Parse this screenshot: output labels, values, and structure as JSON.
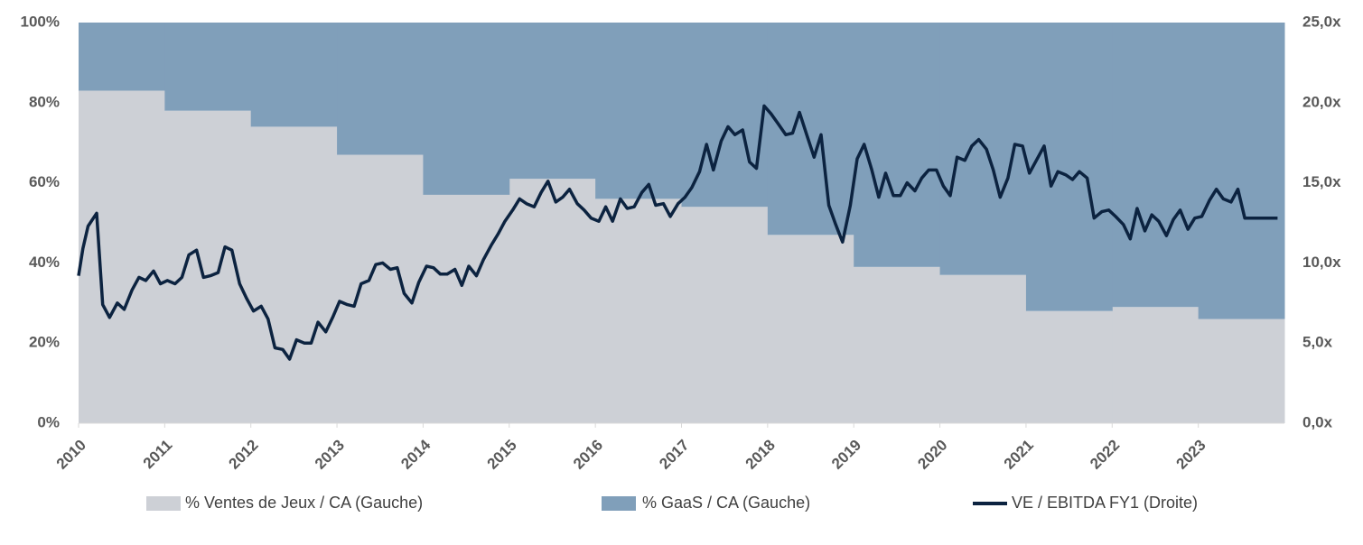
{
  "chart_data": {
    "type": "combo",
    "x": [
      2010,
      2011,
      2012,
      2013,
      2014,
      2015,
      2016,
      2017,
      2018,
      2019,
      2020,
      2021,
      2022,
      2023
    ],
    "xlim": [
      2010,
      2024
    ],
    "xticks": [
      2010,
      2011,
      2012,
      2013,
      2014,
      2015,
      2016,
      2017,
      2018,
      2019,
      2020,
      2021,
      2022,
      2023
    ],
    "ylim": [
      0,
      100
    ],
    "yticks": [
      {
        "value": 0,
        "label": "0%"
      },
      {
        "value": 20,
        "label": "20%"
      },
      {
        "value": 40,
        "label": "40%"
      },
      {
        "value": 60,
        "label": "60%"
      },
      {
        "value": 80,
        "label": "80%"
      },
      {
        "value": 100,
        "label": "100%"
      }
    ],
    "y2lim": [
      0,
      25
    ],
    "y2ticks": [
      {
        "value": 0,
        "label": "0,0x"
      },
      {
        "value": 5,
        "label": "5,0x"
      },
      {
        "value": 10,
        "label": "10,0x"
      },
      {
        "value": 15,
        "label": "15,0x"
      },
      {
        "value": 20,
        "label": "20,0x"
      },
      {
        "value": 25,
        "label": "25,0x"
      }
    ],
    "series": [
      {
        "name": "% Ventes de Jeux / CA (Gauche)",
        "color": "#cdd0d6",
        "kind": "stacked-area",
        "values": [
          83,
          78,
          74,
          67,
          57,
          61,
          56,
          54,
          47,
          39,
          37,
          28,
          29,
          26
        ]
      },
      {
        "name": "% GaaS / CA (Gauche)",
        "color": "#809fba",
        "kind": "stacked-area",
        "values": [
          17,
          22,
          26,
          33,
          43,
          39,
          44,
          46,
          53,
          61,
          63,
          72,
          71,
          74
        ]
      },
      {
        "name": "VE / EBITDA FY1 (Droite)",
        "color": "#0c2340",
        "kind": "line",
        "axis": "y2",
        "x": [
          2010.0,
          2010.05,
          2010.11,
          2010.21,
          2010.28,
          2010.36,
          2010.45,
          2010.53,
          2010.62,
          2010.7,
          2010.78,
          2010.87,
          2010.95,
          2011.03,
          2011.12,
          2011.2,
          2011.28,
          2011.37,
          2011.45,
          2011.53,
          2011.62,
          2011.7,
          2011.78,
          2011.87,
          2011.95,
          2012.03,
          2012.12,
          2012.2,
          2012.28,
          2012.37,
          2012.45,
          2012.53,
          2012.62,
          2012.7,
          2012.78,
          2012.87,
          2012.95,
          2013.03,
          2013.12,
          2013.2,
          2013.28,
          2013.37,
          2013.45,
          2013.53,
          2013.62,
          2013.7,
          2013.78,
          2013.87,
          2013.95,
          2014.04,
          2014.12,
          2014.2,
          2014.28,
          2014.37,
          2014.45,
          2014.53,
          2014.62,
          2014.7,
          2014.79,
          2014.87,
          2014.95,
          2015.04,
          2015.12,
          2015.2,
          2015.29,
          2015.37,
          2015.45,
          2015.54,
          2015.62,
          2015.7,
          2015.79,
          2015.87,
          2015.95,
          2016.04,
          2016.12,
          2016.2,
          2016.29,
          2016.37,
          2016.45,
          2016.54,
          2016.62,
          2016.7,
          2016.79,
          2016.87,
          2016.96,
          2017.04,
          2017.12,
          2017.21,
          2017.29,
          2017.37,
          2017.46,
          2017.54,
          2017.62,
          2017.71,
          2017.79,
          2017.87,
          2017.96,
          2018.04,
          2018.12,
          2018.21,
          2018.29,
          2018.37,
          2018.46,
          2018.54,
          2018.62,
          2018.71,
          2018.79,
          2018.87,
          2018.96,
          2019.04,
          2019.12,
          2019.21,
          2019.29,
          2019.37,
          2019.46,
          2019.54,
          2019.62,
          2019.71,
          2019.79,
          2019.87,
          2019.96,
          2020.04,
          2020.12,
          2020.2,
          2020.29,
          2020.37,
          2020.45,
          2020.54,
          2020.62,
          2020.7,
          2020.79,
          2020.87,
          2020.96,
          2021.04,
          2021.12,
          2021.21,
          2021.29,
          2021.37,
          2021.46,
          2021.54,
          2021.62,
          2021.71,
          2021.79,
          2021.88,
          2021.96,
          2022.04,
          2022.13,
          2022.21,
          2022.29,
          2022.38,
          2022.46,
          2022.54,
          2022.63,
          2022.71,
          2022.79,
          2022.88,
          2022.96,
          2023.04,
          2023.13,
          2023.21,
          2023.29,
          2023.38,
          2023.46,
          2023.54,
          2023.92
        ],
        "values": [
          9.2,
          10.9,
          12.3,
          13.1,
          7.4,
          6.6,
          7.5,
          7.1,
          8.3,
          9.1,
          8.9,
          9.5,
          8.7,
          8.9,
          8.7,
          9.1,
          10.5,
          10.8,
          9.1,
          9.2,
          9.4,
          11.0,
          10.8,
          8.7,
          7.8,
          7.0,
          7.3,
          6.5,
          4.7,
          4.6,
          4.0,
          5.2,
          5.0,
          5.0,
          6.3,
          5.7,
          6.6,
          7.6,
          7.4,
          7.3,
          8.7,
          8.9,
          9.9,
          10.0,
          9.6,
          9.7,
          8.1,
          7.5,
          8.8,
          9.8,
          9.7,
          9.3,
          9.3,
          9.6,
          8.6,
          9.8,
          9.2,
          10.2,
          11.1,
          11.8,
          12.6,
          13.3,
          14.0,
          13.7,
          13.5,
          14.4,
          15.1,
          13.8,
          14.1,
          14.6,
          13.7,
          13.3,
          12.8,
          12.6,
          13.5,
          12.6,
          14.0,
          13.4,
          13.5,
          14.4,
          14.9,
          13.6,
          13.7,
          12.9,
          13.7,
          14.1,
          14.7,
          15.7,
          17.4,
          15.8,
          17.6,
          18.5,
          18.0,
          18.3,
          16.3,
          15.9,
          19.8,
          19.3,
          18.7,
          18.0,
          18.1,
          19.4,
          17.9,
          16.6,
          18.0,
          13.6,
          12.4,
          11.3,
          13.6,
          16.5,
          17.4,
          15.8,
          14.1,
          15.6,
          14.2,
          14.2,
          15.0,
          14.5,
          15.3,
          15.8,
          15.8,
          14.8,
          14.2,
          16.6,
          16.4,
          17.3,
          17.7,
          17.1,
          15.8,
          14.1,
          15.3,
          17.4,
          17.3,
          15.6,
          16.4,
          17.3,
          14.8,
          15.7,
          15.5,
          15.2,
          15.7,
          15.3,
          12.8,
          13.2,
          13.3,
          12.9,
          12.4,
          11.5,
          13.4,
          12.0,
          13.0,
          12.6,
          11.7,
          12.7,
          13.3,
          12.1,
          12.8,
          12.9,
          13.9,
          14.6,
          14.0,
          13.8,
          14.6,
          12.8,
          12.8
        ]
      }
    ]
  }
}
